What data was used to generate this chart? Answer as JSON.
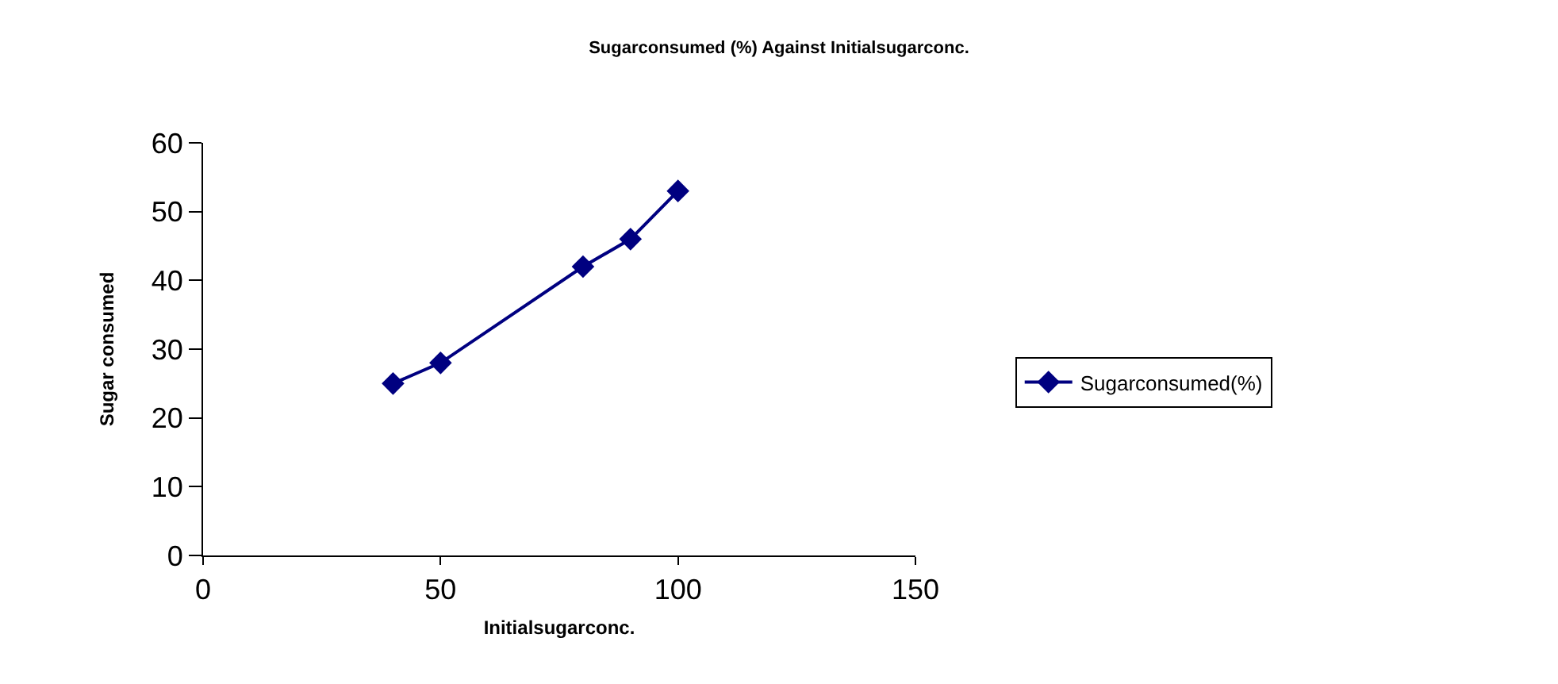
{
  "chart_data": {
    "type": "line",
    "title": "Sugarconsumed (%) Against Initialsugarconc.",
    "xlabel": "Initialsugarconc.",
    "ylabel": "Sugar consumed",
    "x": [
      40,
      50,
      80,
      90,
      100
    ],
    "series": [
      {
        "name": "Sugarconsumed(%)",
        "color": "#000080",
        "values": [
          25,
          28,
          42,
          46,
          53
        ]
      }
    ],
    "xlim": [
      0,
      150
    ],
    "xticks": [
      0,
      50,
      100,
      150
    ],
    "ylim": [
      0,
      60
    ],
    "yticks": [
      0,
      10,
      20,
      30,
      40,
      50,
      60
    ],
    "grid": false,
    "legend": "right",
    "marker": "diamond",
    "line_style": "solid"
  }
}
